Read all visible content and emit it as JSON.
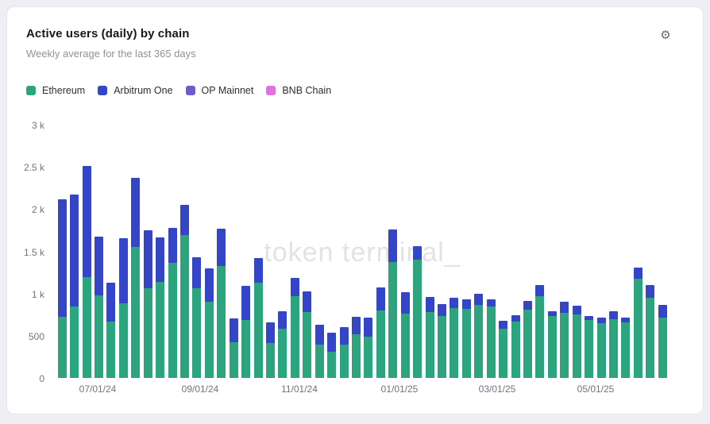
{
  "card": {
    "title": "Active users (daily) by chain",
    "subtitle": "Weekly average for the last 365 days"
  },
  "toolbar": {
    "settings_icon_glyph": "⚙"
  },
  "watermark": "token terminal_",
  "legend": [
    {
      "label": "Ethereum",
      "color": "#2ca47e"
    },
    {
      "label": "Arbitrum One",
      "color": "#3445c7"
    },
    {
      "label": "OP Mainnet",
      "color": "#6a5ecd"
    },
    {
      "label": "BNB Chain",
      "color": "#e071e0"
    }
  ],
  "chart_data": {
    "type": "bar",
    "stacked": true,
    "title": "Active users (daily) by chain",
    "subtitle": "Weekly average for the last 365 days",
    "xlabel": "",
    "ylabel": "",
    "ylim": [
      0,
      3000
    ],
    "grid": false,
    "legend_position": "top-left",
    "x_unit": "week",
    "x_tick_labels": [
      "07/01/24",
      "09/01/24",
      "11/01/24",
      "01/01/25",
      "03/01/25",
      "05/01/25"
    ],
    "y_tick_labels": [
      "3 k",
      "2.5 k",
      "2 k",
      "1.5 k",
      "1 k",
      "500",
      "0"
    ],
    "series": [
      {
        "name": "Ethereum",
        "color": "#2ca47e",
        "values": [
          725,
          845,
          1200,
          985,
          670,
          890,
          1560,
          1070,
          1145,
          1370,
          1700,
          1065,
          905,
          1330,
          425,
          690,
          1135,
          415,
          585,
          975,
          785,
          395,
          315,
          400,
          520,
          490,
          800,
          1380,
          765,
          1410,
          785,
          740,
          830,
          820,
          865,
          850,
          585,
          670,
          810,
          975,
          735,
          770,
          750,
          690,
          655,
          700,
          660,
          1180,
          955,
          715
        ]
      },
      {
        "name": "Arbitrum One",
        "color": "#3445c7",
        "values": [
          1395,
          1335,
          1320,
          695,
          460,
          770,
          820,
          685,
          525,
          410,
          360,
          370,
          400,
          445,
          285,
          405,
          285,
          245,
          205,
          215,
          245,
          235,
          220,
          200,
          205,
          230,
          280,
          380,
          250,
          160,
          175,
          135,
          120,
          110,
          135,
          85,
          95,
          80,
          105,
          125,
          60,
          135,
          110,
          50,
          60,
          90,
          55,
          130,
          150,
          155
        ]
      },
      {
        "name": "OP Mainnet",
        "color": "#6a5ecd",
        "values": [
          0,
          0,
          0,
          0,
          0,
          0,
          0,
          0,
          0,
          0,
          0,
          0,
          0,
          0,
          0,
          0,
          0,
          0,
          0,
          0,
          0,
          0,
          0,
          0,
          0,
          0,
          0,
          0,
          0,
          0,
          0,
          0,
          0,
          0,
          0,
          0,
          0,
          0,
          0,
          0,
          0,
          0,
          0,
          0,
          0,
          0,
          0,
          0,
          0,
          0
        ]
      },
      {
        "name": "BNB Chain",
        "color": "#e071e0",
        "values": [
          0,
          0,
          0,
          0,
          0,
          0,
          0,
          0,
          0,
          0,
          0,
          0,
          0,
          0,
          0,
          0,
          0,
          0,
          0,
          0,
          0,
          0,
          0,
          0,
          0,
          0,
          0,
          0,
          0,
          0,
          0,
          0,
          0,
          0,
          0,
          0,
          0,
          0,
          0,
          0,
          0,
          0,
          0,
          0,
          0,
          0,
          0,
          0,
          0,
          0
        ]
      }
    ]
  }
}
